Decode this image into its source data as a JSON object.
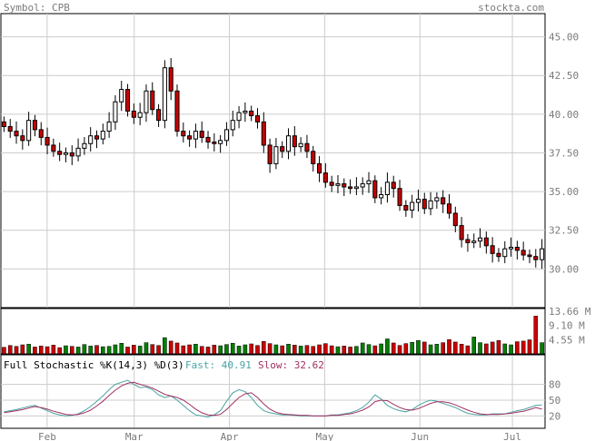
{
  "header": {
    "symbol_label": "Symbol: CPB",
    "site": "stockta.com"
  },
  "colors": {
    "up": "#008000",
    "down": "#cc0000",
    "fast": "#4aa3a3",
    "slow": "#a03060",
    "grid": "#cccccc",
    "axis_text": "#7a7a7a"
  },
  "chart_data": [
    {
      "type": "candlestick",
      "title": "",
      "ylim": [
        27.5,
        46.5
      ],
      "y_ticks": [
        "45.00",
        "42.50",
        "40.00",
        "37.50",
        "35.00",
        "32.50",
        "30.00"
      ],
      "x_ticks": [
        "Feb",
        "Mar",
        "Apr",
        "May",
        "Jun",
        "Jul"
      ],
      "prices": [
        39.2,
        38.9,
        38.6,
        38.3,
        39.6,
        39.0,
        38.5,
        38.0,
        37.6,
        37.4,
        37.5,
        37.3,
        37.8,
        38.1,
        38.6,
        38.4,
        38.9,
        39.5,
        40.8,
        41.6,
        40.2,
        39.8,
        40.1,
        41.5,
        40.3,
        39.6,
        43.0,
        41.5,
        38.9,
        38.6,
        38.4,
        38.9,
        38.5,
        38.2,
        38.1,
        38.3,
        39.0,
        39.6,
        40.1,
        40.2,
        39.9,
        39.5,
        38.0,
        36.8,
        37.9,
        37.6,
        38.6,
        37.9,
        38.1,
        37.6,
        36.8,
        36.2,
        35.6,
        35.4,
        35.5,
        35.3,
        35.2,
        35.3,
        35.5,
        35.7,
        34.6,
        34.8,
        35.6,
        35.2,
        34.1,
        33.8,
        34.3,
        34.5,
        33.9,
        34.4,
        34.6,
        34.2,
        33.6,
        32.8,
        31.9,
        31.7,
        31.8,
        32.0,
        31.5,
        31.0,
        30.8,
        31.3,
        31.4,
        31.2,
        30.9,
        30.8,
        30.6,
        31.3
      ],
      "volume": {
        "labels": [
          "13.66 M",
          "9.10 M",
          "4.55 M"
        ],
        "values": [
          2.1,
          2.7,
          2.4,
          2.9,
          3.1,
          2.2,
          2.5,
          2.3,
          2.8,
          2.0,
          2.6,
          2.4,
          2.2,
          3.0,
          2.5,
          2.7,
          2.3,
          2.4,
          2.9,
          3.4,
          2.2,
          2.8,
          2.5,
          3.6,
          3.0,
          2.7,
          5.2,
          4.1,
          3.5,
          2.6,
          2.9,
          3.1,
          2.4,
          2.2,
          2.8,
          2.6,
          3.0,
          3.4,
          2.5,
          2.9,
          3.2,
          2.7,
          4.0,
          3.3,
          2.9,
          2.6,
          3.1,
          2.8,
          2.5,
          2.7,
          2.4,
          2.9,
          3.3,
          2.6,
          2.3,
          2.5,
          2.2,
          2.4,
          3.5,
          3.0,
          2.6,
          3.2,
          4.8,
          3.5,
          2.7,
          3.3,
          3.7,
          4.3,
          3.8,
          2.9,
          3.1,
          3.6,
          4.6,
          3.8,
          3.1,
          2.6,
          5.4,
          3.6,
          3.2,
          3.8,
          4.3,
          3.2,
          2.9,
          3.9,
          4.1,
          4.5,
          12.1,
          3.6
        ]
      }
    },
    {
      "type": "line",
      "title": "Full Stochastic %K(14,3) %D(3)",
      "fast_label": "Fast: 40.91",
      "slow_label": "Slow: 32.62",
      "ylim": [
        0,
        100
      ],
      "y_ticks": [
        "80",
        "50",
        "20"
      ],
      "series": [
        {
          "name": "Fast",
          "values": [
            28,
            30,
            32,
            35,
            38,
            40,
            35,
            30,
            25,
            22,
            20,
            21,
            24,
            30,
            38,
            48,
            58,
            70,
            80,
            84,
            88,
            80,
            74,
            75,
            70,
            60,
            55,
            58,
            50,
            40,
            30,
            22,
            20,
            18,
            22,
            30,
            48,
            64,
            70,
            66,
            55,
            40,
            30,
            26,
            24,
            22,
            22,
            21,
            20,
            20,
            20,
            20,
            20,
            22,
            22,
            24,
            26,
            30,
            36,
            46,
            60,
            52,
            40,
            34,
            30,
            28,
            32,
            40,
            46,
            50,
            48,
            44,
            40,
            36,
            30,
            25,
            23,
            22,
            22,
            24,
            24,
            24,
            27,
            30,
            32,
            36,
            40,
            41
          ]
        },
        {
          "name": "Slow",
          "values": [
            26,
            28,
            30,
            32,
            35,
            38,
            36,
            33,
            29,
            26,
            23,
            22,
            23,
            26,
            31,
            39,
            48,
            59,
            69,
            77,
            82,
            84,
            80,
            77,
            73,
            67,
            61,
            58,
            55,
            50,
            42,
            33,
            26,
            22,
            21,
            23,
            32,
            44,
            55,
            62,
            64,
            55,
            43,
            33,
            27,
            24,
            23,
            22,
            21,
            21,
            20,
            20,
            20,
            21,
            21,
            23,
            24,
            27,
            31,
            37,
            47,
            50,
            49,
            42,
            36,
            32,
            31,
            34,
            39,
            44,
            47,
            47,
            45,
            41,
            36,
            31,
            27,
            24,
            23,
            23,
            23,
            24,
            25,
            27,
            29,
            32,
            36,
            33
          ]
        }
      ]
    }
  ]
}
